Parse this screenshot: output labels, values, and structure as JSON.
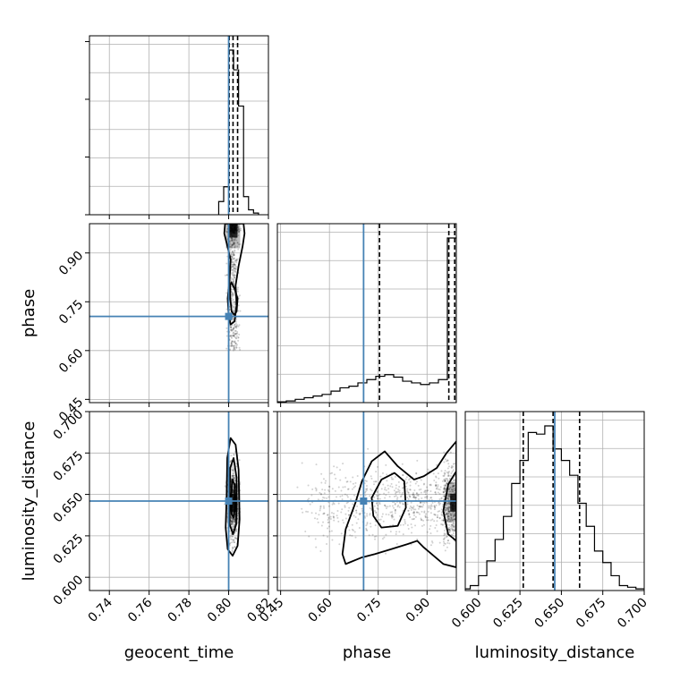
{
  "chart_data": {
    "type": "corner",
    "parameters": [
      "geocent_time",
      "phase",
      "luminosity_distance"
    ],
    "axis_labels": {
      "geocent_time": "geocent_time",
      "phase": "phase",
      "luminosity_distance": "luminosity_distance"
    },
    "ranges": {
      "geocent_time": [
        0.73,
        0.82
      ],
      "phase": [
        0.44,
        0.99
      ],
      "luminosity_distance": [
        0.592,
        0.7
      ]
    },
    "ticks": {
      "geocent_time": [
        0.74,
        0.76,
        0.78,
        0.8,
        0.82
      ],
      "phase": [
        0.45,
        0.6,
        0.75,
        0.9
      ],
      "luminosity_distance": [
        0.6,
        0.625,
        0.65,
        0.675,
        0.7
      ]
    },
    "tick_labels": {
      "geocent_time": [
        "0.74",
        "0.76",
        "0.78",
        "0.80",
        "0.82"
      ],
      "phase": [
        "0.45",
        "0.60",
        "0.75",
        "0.90"
      ],
      "luminosity_distance": [
        "0.600",
        "0.625",
        "0.650",
        "0.675",
        "0.700"
      ]
    },
    "truths": {
      "geocent_time": 0.8,
      "phase": 0.705,
      "luminosity_distance": 0.646
    },
    "quantiles": {
      "geocent_time": [
        0.8003,
        0.8022,
        0.8045
      ],
      "phase": [
        0.754,
        0.967,
        0.985
      ],
      "luminosity_distance": [
        0.627,
        0.645,
        0.661
      ]
    },
    "histograms": {
      "geocent_time": {
        "edges": [
          0.795,
          0.7975,
          0.8,
          0.8025,
          0.805,
          0.8075,
          0.81,
          0.8125,
          0.815
        ],
        "counts": [
          0.08,
          0.17,
          1.0,
          0.88,
          0.66,
          0.11,
          0.03,
          0.01
        ]
      },
      "phase": {
        "edges": [
          0.44,
          0.4675,
          0.495,
          0.5225,
          0.55,
          0.5775,
          0.605,
          0.6325,
          0.66,
          0.6875,
          0.715,
          0.7425,
          0.77,
          0.7975,
          0.825,
          0.8525,
          0.88,
          0.9075,
          0.935,
          0.9625,
          0.99
        ],
        "counts": [
          0.005,
          0.01,
          0.02,
          0.03,
          0.04,
          0.05,
          0.07,
          0.09,
          0.1,
          0.12,
          0.14,
          0.16,
          0.17,
          0.155,
          0.13,
          0.12,
          0.11,
          0.12,
          0.14,
          1.0
        ]
      },
      "luminosity_distance": {
        "edges": [
          0.59,
          0.595,
          0.6,
          0.605,
          0.61,
          0.615,
          0.62,
          0.625,
          0.63,
          0.635,
          0.64,
          0.645,
          0.65,
          0.655,
          0.66,
          0.665,
          0.67,
          0.675,
          0.68,
          0.685,
          0.69,
          0.695,
          0.7
        ],
        "counts": [
          0.01,
          0.03,
          0.09,
          0.18,
          0.31,
          0.45,
          0.65,
          0.79,
          0.96,
          0.95,
          1.0,
          0.86,
          0.79,
          0.7,
          0.53,
          0.39,
          0.24,
          0.17,
          0.09,
          0.03,
          0.02,
          0.01
        ]
      }
    },
    "contours": {
      "geocent_time|phase": [
        [
          [
            0.7982,
            0.99
          ],
          [
            0.7978,
            0.96
          ],
          [
            0.799,
            0.93
          ],
          [
            0.801,
            0.88
          ],
          [
            0.8005,
            0.82
          ],
          [
            0.7995,
            0.76
          ],
          [
            0.8,
            0.71
          ],
          [
            0.801,
            0.68
          ],
          [
            0.803,
            0.69
          ],
          [
            0.804,
            0.74
          ],
          [
            0.8035,
            0.8
          ],
          [
            0.805,
            0.86
          ],
          [
            0.807,
            0.92
          ],
          [
            0.808,
            0.96
          ],
          [
            0.8075,
            0.99
          ]
        ],
        [
          [
            0.8013,
            0.81
          ],
          [
            0.803,
            0.79
          ],
          [
            0.8045,
            0.76
          ],
          [
            0.804,
            0.72
          ],
          [
            0.8028,
            0.71
          ],
          [
            0.8015,
            0.72
          ],
          [
            0.8008,
            0.76
          ],
          [
            0.8008,
            0.8
          ]
        ]
      ],
      "geocent_time|luminosity_distance": [
        [
          [
            0.799,
            0.65
          ],
          [
            0.7985,
            0.63
          ],
          [
            0.7995,
            0.617
          ],
          [
            0.802,
            0.613
          ],
          [
            0.8045,
            0.619
          ],
          [
            0.8055,
            0.635
          ],
          [
            0.805,
            0.665
          ],
          [
            0.8035,
            0.68
          ],
          [
            0.801,
            0.684
          ],
          [
            0.7993,
            0.672
          ]
        ],
        [
          [
            0.8005,
            0.65
          ],
          [
            0.8005,
            0.632
          ],
          [
            0.8022,
            0.626
          ],
          [
            0.8038,
            0.632
          ],
          [
            0.804,
            0.66
          ],
          [
            0.8025,
            0.672
          ],
          [
            0.8008,
            0.666
          ]
        ],
        [
          [
            0.8012,
            0.648
          ],
          [
            0.8015,
            0.638
          ],
          [
            0.8025,
            0.636
          ],
          [
            0.8032,
            0.642
          ],
          [
            0.803,
            0.656
          ],
          [
            0.8018,
            0.659
          ]
        ]
      ],
      "phase|luminosity_distance": [
        [
          [
            0.99,
            0.682
          ],
          [
            0.96,
            0.675
          ],
          [
            0.93,
            0.666
          ],
          [
            0.89,
            0.661
          ],
          [
            0.86,
            0.659
          ],
          [
            0.81,
            0.667
          ],
          [
            0.77,
            0.676
          ],
          [
            0.73,
            0.67
          ],
          [
            0.7,
            0.658
          ],
          [
            0.68,
            0.645
          ],
          [
            0.65,
            0.629
          ],
          [
            0.64,
            0.614
          ],
          [
            0.65,
            0.608
          ],
          [
            0.7,
            0.612
          ],
          [
            0.74,
            0.614
          ],
          [
            0.79,
            0.617
          ],
          [
            0.84,
            0.62
          ],
          [
            0.87,
            0.622
          ],
          [
            0.89,
            0.618
          ],
          [
            0.92,
            0.613
          ],
          [
            0.95,
            0.608
          ],
          [
            0.99,
            0.606
          ]
        ],
        [
          [
            0.99,
            0.664
          ],
          [
            0.965,
            0.656
          ],
          [
            0.95,
            0.64
          ],
          [
            0.965,
            0.626
          ],
          [
            0.99,
            0.622
          ]
        ],
        [
          [
            0.73,
            0.648
          ],
          [
            0.76,
            0.659
          ],
          [
            0.8,
            0.663
          ],
          [
            0.83,
            0.658
          ],
          [
            0.835,
            0.642
          ],
          [
            0.81,
            0.631
          ],
          [
            0.76,
            0.63
          ],
          [
            0.735,
            0.637
          ]
        ]
      ]
    },
    "scatter_counts": {
      "geocent_time|phase": 700,
      "geocent_time|luminosity_distance": 650,
      "phase|luminosity_distance": 1100
    },
    "colors": {
      "truth": "#4682b4",
      "lines": "#000000",
      "grid": "#b0b0b0",
      "points": "#000000"
    },
    "grid": true
  }
}
